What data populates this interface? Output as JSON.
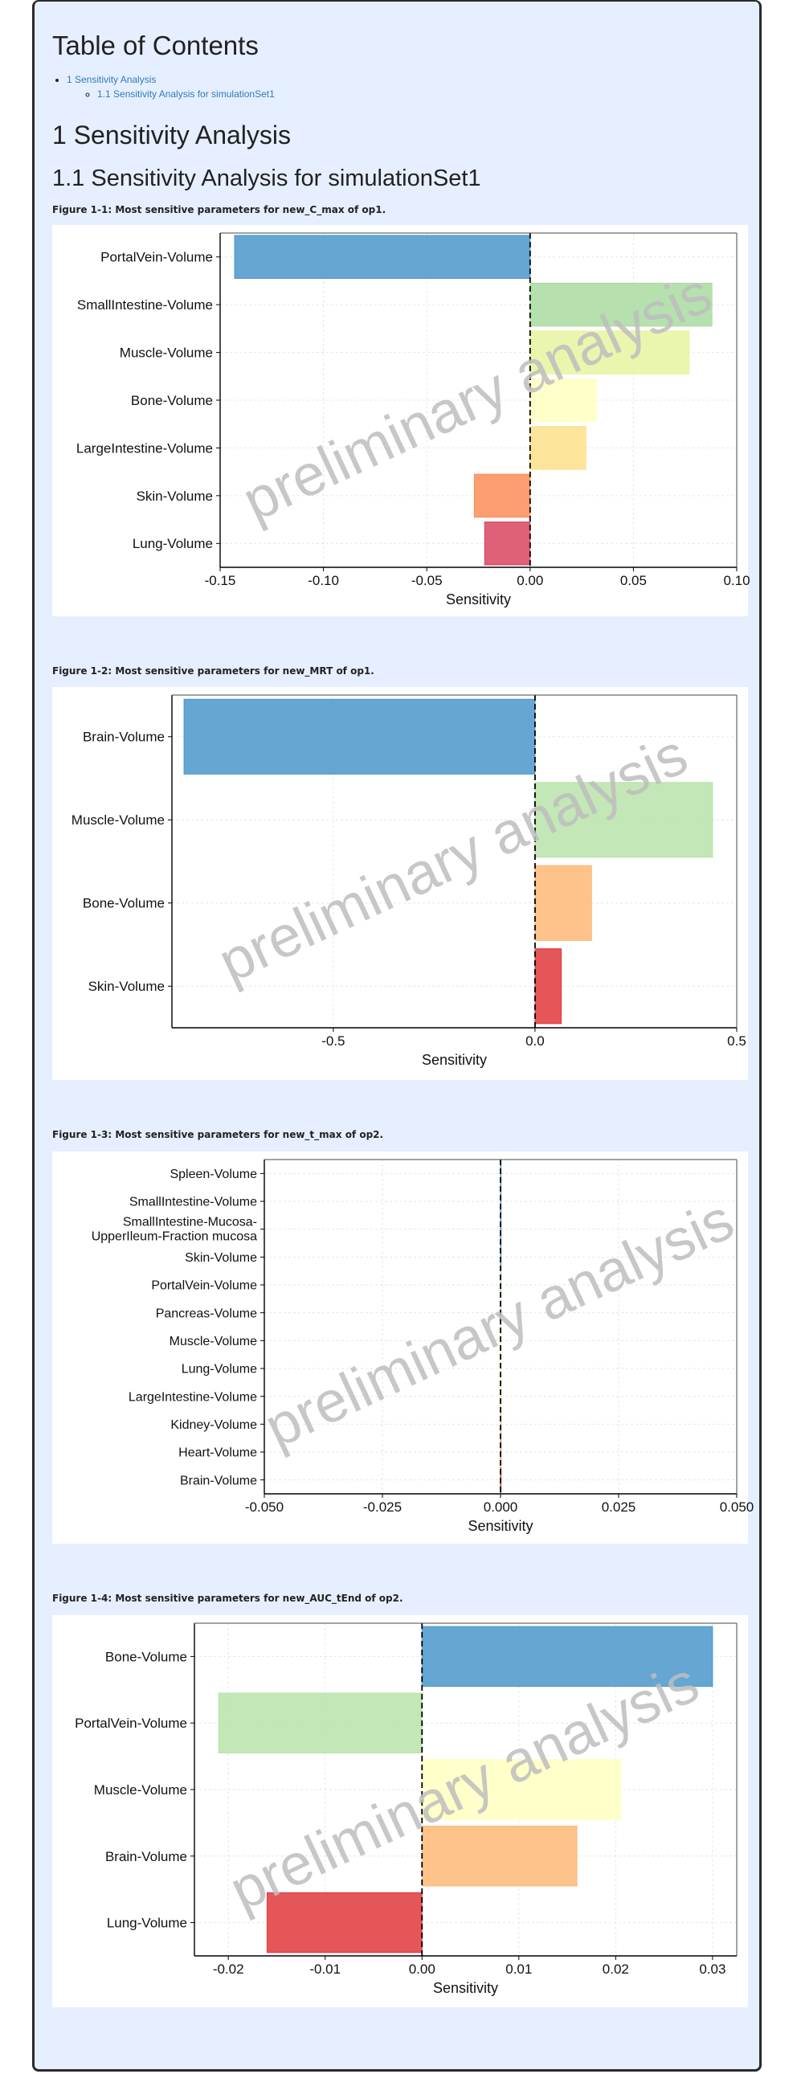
{
  "toc": {
    "title": "Table of Contents",
    "items": [
      {
        "label": "1 Sensitivity Analysis"
      },
      {
        "label": "1.1 Sensitivity Analysis for simulationSet1"
      }
    ]
  },
  "section_title": "1 Sensitivity Analysis",
  "subsection_title": "1.1 Sensitivity Analysis for simulationSet1",
  "watermark": "preliminary analysis",
  "colors": {
    "background": "#e6efff",
    "link": "#2f7bb8"
  },
  "chart_data": [
    {
      "type": "bar",
      "orientation": "horizontal",
      "caption": "Figure 1-1: Most sensitive parameters for new_C_max of op1.",
      "xlabel": "Sensitivity",
      "xlim": [
        -0.15,
        0.1
      ],
      "xticks": [
        -0.15,
        -0.1,
        -0.05,
        0.0,
        0.05,
        0.1
      ],
      "xtick_labels": [
        "-0.15",
        "-0.10",
        "-0.05",
        "0.00",
        "0.05",
        "0.10"
      ],
      "categories": [
        "PortalVein-Volume",
        "SmallIntestine-Volume",
        "Muscle-Volume",
        "Bone-Volume",
        "LargeIntestine-Volume",
        "Skin-Volume",
        "Lung-Volume"
      ],
      "values": [
        -0.143,
        0.088,
        0.077,
        0.032,
        0.027,
        -0.027,
        -0.022
      ],
      "colors": [
        "#4a97cb",
        "#a9dca0",
        "#e6f5a0",
        "#ffffbf",
        "#fee08b",
        "#fc8d59",
        "#d9455f"
      ]
    },
    {
      "type": "bar",
      "orientation": "horizontal",
      "caption": "Figure 1-2: Most sensitive parameters for new_MRT of op1.",
      "xlabel": "Sensitivity",
      "xlim": [
        -0.9,
        0.5
      ],
      "xticks": [
        -0.5,
        0.0,
        0.5
      ],
      "xtick_labels": [
        "-0.5",
        "0.0",
        "0.5"
      ],
      "categories": [
        "Brain-Volume",
        "Muscle-Volume",
        "Bone-Volume",
        "Skin-Volume"
      ],
      "values": [
        -0.87,
        0.44,
        0.14,
        0.065
      ],
      "colors": [
        "#4a97cb",
        "#b9e3a9",
        "#fdb876",
        "#e0383b"
      ]
    },
    {
      "type": "bar",
      "orientation": "horizontal",
      "caption": "Figure 1-3: Most sensitive parameters for new_t_max of op2.",
      "xlabel": "Sensitivity",
      "xlim": [
        -0.05,
        0.05
      ],
      "xticks": [
        -0.05,
        -0.025,
        0.0,
        0.025,
        0.05
      ],
      "xtick_labels": [
        "-0.050",
        "-0.025",
        "0.000",
        "0.025",
        "0.050"
      ],
      "categories": [
        "Spleen-Volume",
        "SmallIntestine-Volume",
        "SmallIntestine-Mucosa-UpperIleum-Fraction mucosa",
        "Skin-Volume",
        "PortalVein-Volume",
        "Pancreas-Volume",
        "Muscle-Volume",
        "Lung-Volume",
        "LargeIntestine-Volume",
        "Kidney-Volume",
        "Heart-Volume",
        "Brain-Volume"
      ],
      "values": [
        0,
        0,
        0,
        0,
        0,
        0,
        0,
        0,
        0,
        0,
        0,
        0
      ],
      "colors": [
        "#4a97cb",
        "#4a97cb",
        "#4a97cb",
        "#4a97cb",
        "#a9dca0",
        "#a9dca0",
        "#e6f5a0",
        "#ffffbf",
        "#fee08b",
        "#fdb876",
        "#fc8d59",
        "#e0383b"
      ]
    },
    {
      "type": "bar",
      "orientation": "horizontal",
      "caption": "Figure 1-4: Most sensitive parameters for new_AUC_tEnd of op2.",
      "xlabel": "Sensitivity",
      "xlim": [
        -0.0235,
        0.0325
      ],
      "xticks": [
        -0.02,
        -0.01,
        0.0,
        0.01,
        0.02,
        0.03
      ],
      "xtick_labels": [
        "-0.02",
        "-0.01",
        "0.00",
        "0.01",
        "0.02",
        "0.03"
      ],
      "categories": [
        "Bone-Volume",
        "PortalVein-Volume",
        "Muscle-Volume",
        "Brain-Volume",
        "Lung-Volume"
      ],
      "values": [
        0.03,
        -0.021,
        0.0205,
        0.016,
        -0.016
      ],
      "colors": [
        "#4a97cb",
        "#b9e3a9",
        "#ffffbf",
        "#fdb876",
        "#e0383b"
      ]
    }
  ]
}
